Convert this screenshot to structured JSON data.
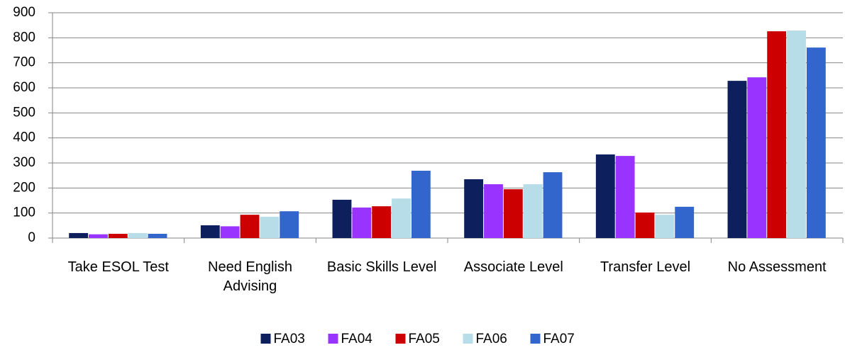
{
  "chart_data": {
    "type": "bar",
    "categories": [
      "Take ESOL Test",
      "Need English Advising",
      "Basic Skills Level",
      "Associate Level",
      "Transfer Level",
      "No Assessment"
    ],
    "series": [
      {
        "name": "FA03",
        "color": "#0d1f5c",
        "values": [
          20,
          51,
          153,
          235,
          334,
          628
        ]
      },
      {
        "name": "FA04",
        "color": "#9933ff",
        "values": [
          15,
          47,
          122,
          215,
          328,
          642
        ]
      },
      {
        "name": "FA05",
        "color": "#cc0000",
        "values": [
          17,
          93,
          127,
          195,
          102,
          826
        ]
      },
      {
        "name": "FA06",
        "color": "#b7dde8",
        "values": [
          20,
          85,
          158,
          215,
          93,
          829
        ]
      },
      {
        "name": "FA07",
        "color": "#3366cc",
        "values": [
          17,
          107,
          269,
          263,
          125,
          761
        ]
      }
    ],
    "ylim": [
      0,
      900
    ],
    "yticks": [
      0,
      100,
      200,
      300,
      400,
      500,
      600,
      700,
      800,
      900
    ],
    "grid": true,
    "legend": "bottom"
  }
}
